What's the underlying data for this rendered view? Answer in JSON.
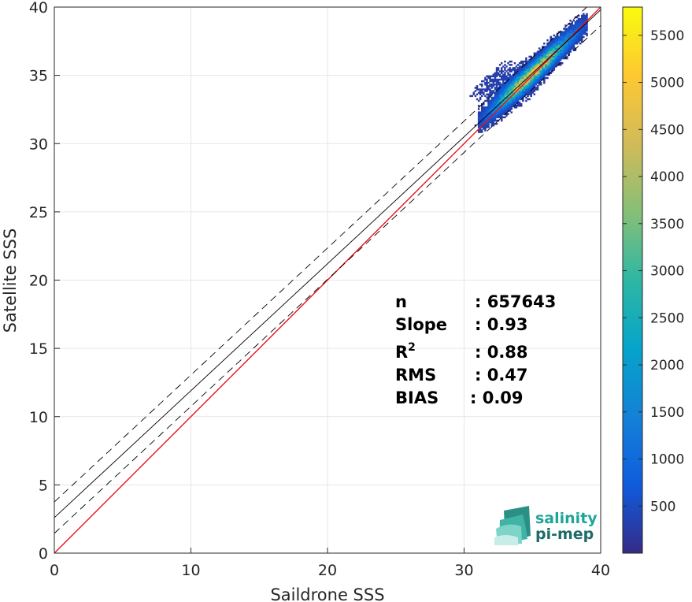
{
  "chart_data": {
    "type": "heatmap",
    "title": "",
    "xlabel": "Saildrone SSS",
    "ylabel": "Satellite SSS",
    "xlim": [
      0,
      40
    ],
    "ylim": [
      0,
      40
    ],
    "xticks": [
      0,
      10,
      20,
      30,
      40
    ],
    "yticks": [
      0,
      5,
      10,
      15,
      20,
      25,
      30,
      35,
      40
    ],
    "grid": true,
    "colorbar": {
      "range": [
        0,
        5800
      ],
      "ticks": [
        500,
        1000,
        1500,
        2000,
        2500,
        3000,
        3500,
        4000,
        4500,
        5000,
        5500
      ],
      "colormap": "parula",
      "colors": [
        "#352a87",
        "#0f5cdd",
        "#1481d6",
        "#06a4ca",
        "#2eb7a4",
        "#87bf77",
        "#d1bb59",
        "#fec832",
        "#f9fb0e"
      ]
    },
    "reference_lines": [
      {
        "name": "one-to-one",
        "color": "#e8141c",
        "style": "solid",
        "slope": 1.0,
        "intercept": 0.0
      },
      {
        "name": "regression",
        "color": "#000000",
        "style": "solid",
        "slope": 0.93,
        "intercept": 2.6
      },
      {
        "name": "regression-upper",
        "color": "#000000",
        "style": "dashed",
        "slope": 0.93,
        "intercept": 3.75
      },
      {
        "name": "regression-lower",
        "color": "#000000",
        "style": "dashed",
        "slope": 0.93,
        "intercept": 1.45
      }
    ],
    "density_cluster": {
      "x_range": [
        28.0,
        39.0
      ],
      "y_range": [
        30.8,
        39.5
      ],
      "peak_center": [
        35.0,
        35.2
      ],
      "peak_count": 5800
    },
    "stats": [
      {
        "label": "n",
        "value": ": 657643"
      },
      {
        "label": "Slope",
        "value": ": 0.93"
      },
      {
        "label": "R",
        "sup": "2",
        "value": ": 0.88"
      },
      {
        "label": "RMS",
        "value": ": 0.47"
      },
      {
        "label": "BIAS",
        "value": ": 0.09"
      }
    ]
  },
  "logo": {
    "line1": "salinity",
    "line2": "pi-mep"
  }
}
